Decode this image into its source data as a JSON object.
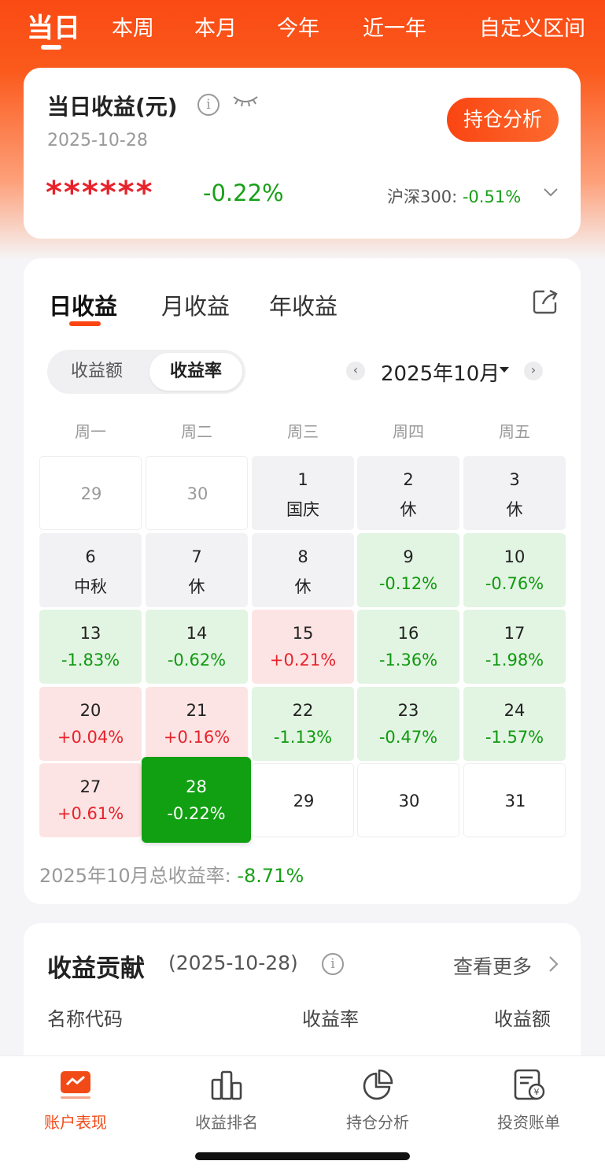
{
  "period_tabs": [
    "当日",
    "本周",
    "本月",
    "今年",
    "近一年",
    "自定义区间"
  ],
  "summary": {
    "title": "当日收益(元)",
    "date": "2025-10-28",
    "analysis_button": "持仓分析",
    "hidden_amount": "******",
    "day_return": "-0.22%",
    "benchmark_label": "沪深300:",
    "benchmark_value": "-0.51%"
  },
  "returns": {
    "tabs": [
      "日收益",
      "月收益",
      "年收益"
    ],
    "toggle": [
      "收益额",
      "收益率"
    ],
    "month": "2025年10月",
    "weekdays": [
      "周一",
      "周二",
      "周三",
      "周四",
      "周五"
    ],
    "rows": [
      [
        {
          "d": "29",
          "s": "",
          "t": "out"
        },
        {
          "d": "30",
          "s": "",
          "t": "out"
        },
        {
          "d": "1",
          "s": "国庆",
          "t": "hol"
        },
        {
          "d": "2",
          "s": "休",
          "t": "hol"
        },
        {
          "d": "3",
          "s": "休",
          "t": "hol"
        }
      ],
      [
        {
          "d": "6",
          "s": "中秋",
          "t": "hol"
        },
        {
          "d": "7",
          "s": "休",
          "t": "hol"
        },
        {
          "d": "8",
          "s": "休",
          "t": "hol"
        },
        {
          "d": "9",
          "s": "-0.12%",
          "t": "down"
        },
        {
          "d": "10",
          "s": "-0.76%",
          "t": "down"
        }
      ],
      [
        {
          "d": "13",
          "s": "-1.83%",
          "t": "down"
        },
        {
          "d": "14",
          "s": "-0.62%",
          "t": "down"
        },
        {
          "d": "15",
          "s": "+0.21%",
          "t": "up"
        },
        {
          "d": "16",
          "s": "-1.36%",
          "t": "down"
        },
        {
          "d": "17",
          "s": "-1.98%",
          "t": "down"
        }
      ],
      [
        {
          "d": "20",
          "s": "+0.04%",
          "t": "up"
        },
        {
          "d": "21",
          "s": "+0.16%",
          "t": "up"
        },
        {
          "d": "22",
          "s": "-1.13%",
          "t": "down"
        },
        {
          "d": "23",
          "s": "-0.47%",
          "t": "down"
        },
        {
          "d": "24",
          "s": "-1.57%",
          "t": "down"
        }
      ],
      [
        {
          "d": "27",
          "s": "+0.61%",
          "t": "up"
        },
        {
          "d": "28",
          "s": "-0.22%",
          "t": "sel"
        },
        {
          "d": "29",
          "s": "",
          "t": "empty"
        },
        {
          "d": "30",
          "s": "",
          "t": "empty"
        },
        {
          "d": "31",
          "s": "",
          "t": "empty"
        }
      ]
    ],
    "total_label": "2025年10月总收益率:",
    "total_value": "-8.71%"
  },
  "contribution": {
    "title": "收益贡献",
    "date": "(2025-10-28)",
    "more": "查看更多",
    "columns": [
      "名称代码",
      "收益率",
      "收益额"
    ]
  },
  "bottom_nav": [
    "账户表现",
    "收益排名",
    "持仓分析",
    "投资账单"
  ],
  "colors": {
    "brand": "#fa4512",
    "gain": "#e8222b",
    "loss": "#18a018"
  }
}
